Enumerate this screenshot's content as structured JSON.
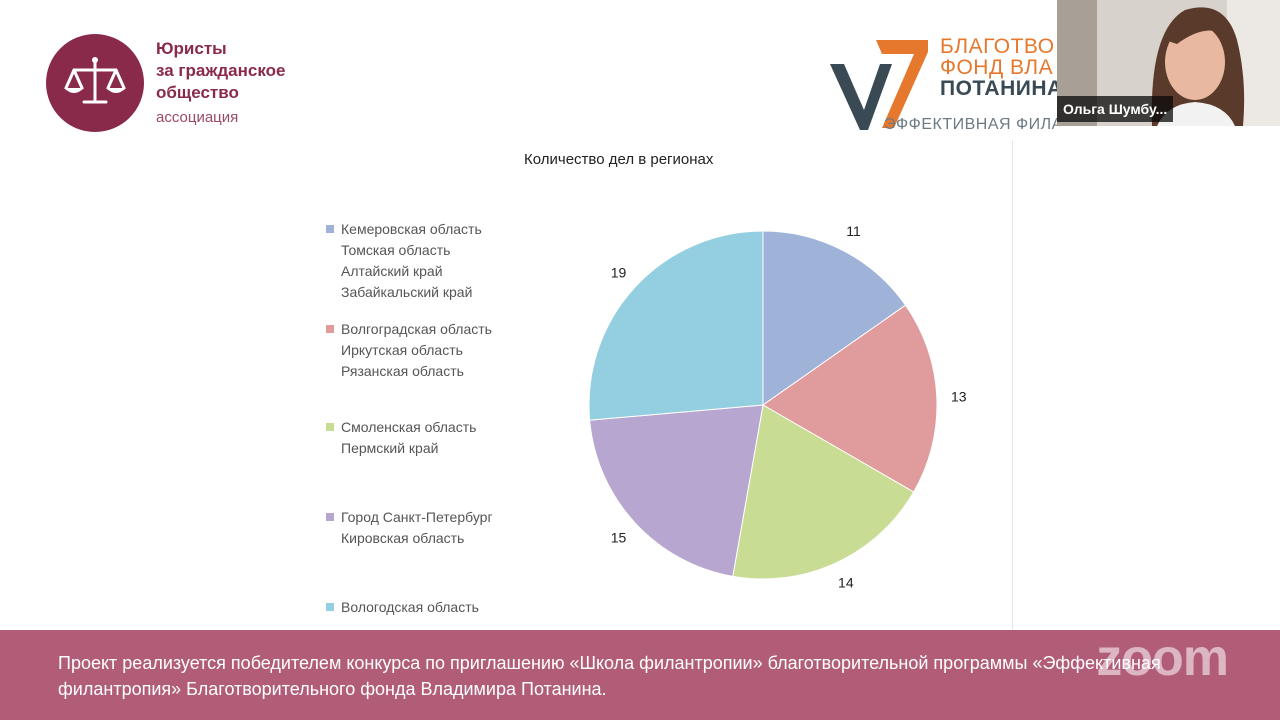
{
  "org": {
    "name_lines": [
      "Юристы",
      "за гражданское",
      "общество"
    ],
    "subtitle": "ассоциация",
    "icon": "scales-icon",
    "color": "#8a2a4a"
  },
  "fund": {
    "line1": "БЛАГОТВО",
    "line2": "ФОНД ВЛА",
    "line3": "ПОТАНИНА",
    "tagline": "ЭФФЕКТИВНАЯ ФИЛАНТРОПИЯ",
    "accent_orange": "#e6782e",
    "accent_dark": "#3a4a55"
  },
  "webcam": {
    "participant_name": "Ольга Шумбу..."
  },
  "chart_data": {
    "type": "pie",
    "title": "Количество  дел в регионах",
    "values": [
      11,
      13,
      14,
      15,
      19
    ],
    "legend": [
      {
        "lines": [
          "Кемеровская область",
          "Томская область",
          "Алтайский край",
          "Забайкальский край"
        ]
      },
      {
        "lines": [
          "Волгоградская область",
          "Иркутская область",
          "Рязанская область"
        ]
      },
      {
        "lines": [
          "Смоленская область",
          "Пермский край"
        ]
      },
      {
        "lines": [
          "Город Санкт-Петербург",
          "Кировская область"
        ]
      },
      {
        "lines": [
          "Вологодская область"
        ]
      }
    ],
    "colors": [
      "#9fb2d8",
      "#e09c9c",
      "#c8dc94",
      "#b7a6cf",
      "#93cfe0"
    ],
    "legend_placement": "left"
  },
  "footer": {
    "text": "Проект реализуется победителем конкурса по приглашению «Школа филантропии» благотворительной программы «Эффективная филантропия» Благотворительного фонда Владимира Потанина.",
    "background": "#b15d78",
    "zoom_watermark": "zoom"
  }
}
